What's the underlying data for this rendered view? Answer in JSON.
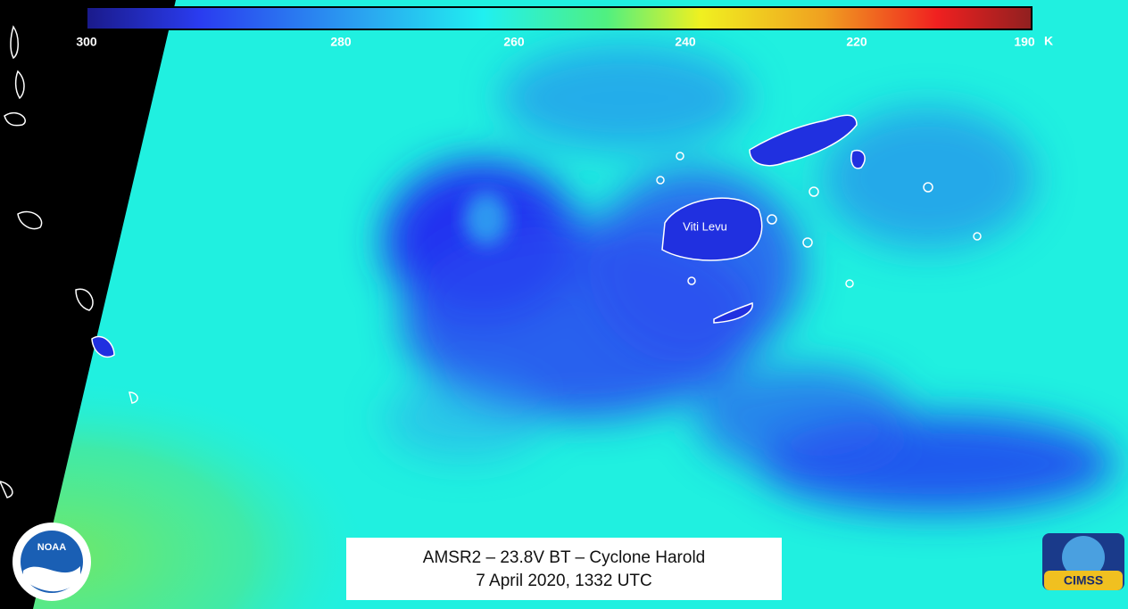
{
  "colorbar": {
    "ticks": [
      300,
      280,
      260,
      240,
      220,
      190
    ],
    "unit": "K"
  },
  "labels": {
    "island": "Viti Levu"
  },
  "caption": {
    "line1": "AMSR2 – 23.8V BT – Cyclone Harold",
    "line2": "7 April 2020, 1332 UTC"
  },
  "logos": {
    "noaa": "NOAA",
    "cimss": "CIMSS"
  }
}
